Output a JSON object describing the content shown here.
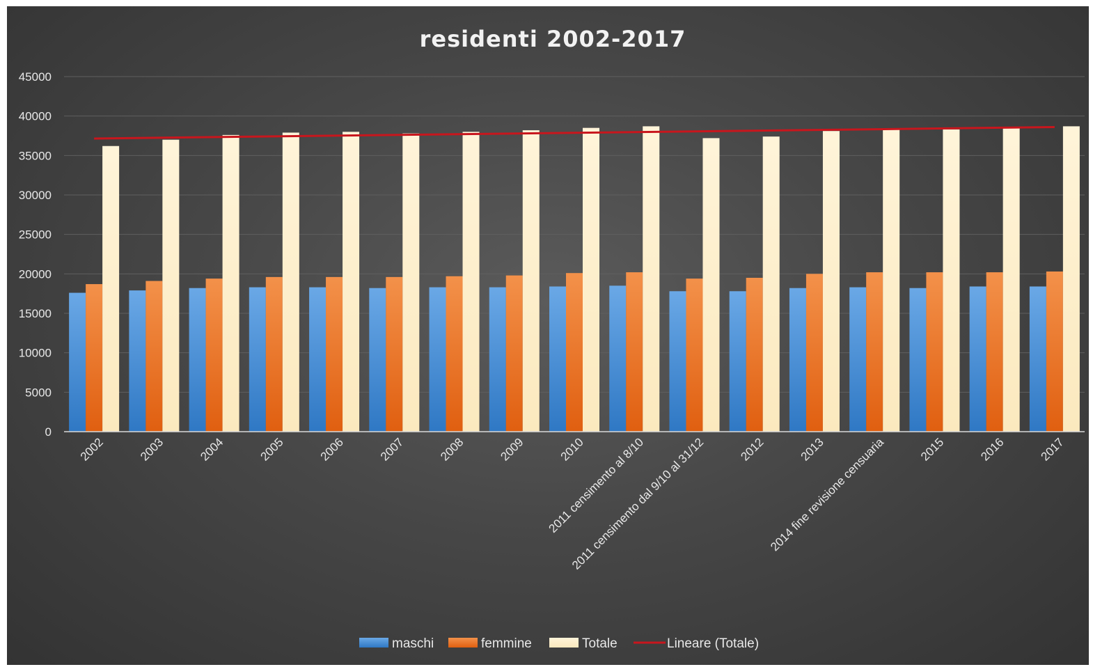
{
  "chart_data": {
    "type": "bar",
    "title": "residenti 2002-2017",
    "xlabel": "",
    "ylabel": "",
    "ylim": [
      0,
      45000
    ],
    "y_ticks": [
      0,
      5000,
      10000,
      15000,
      20000,
      25000,
      30000,
      35000,
      40000,
      45000
    ],
    "grid": true,
    "legend_position": "bottom",
    "categories": [
      "2002",
      "2003",
      "2004",
      "2005",
      "2006",
      "2007",
      "2008",
      "2009",
      "2010",
      "2011 censimento al 8/10",
      "2011 censimento dal 9/10 al 31/12",
      "2012",
      "2013",
      "2014 fine revisione censuaria",
      "2015",
      "2016",
      "2017"
    ],
    "series": [
      {
        "name": "maschi",
        "color": "#4a8fd6",
        "values": [
          17600,
          17900,
          18200,
          18300,
          18300,
          18200,
          18300,
          18300,
          18400,
          18500,
          17800,
          17800,
          18200,
          18300,
          18200,
          18400,
          18400
        ]
      },
      {
        "name": "femmine",
        "color": "#ee7b2e",
        "values": [
          18700,
          19100,
          19400,
          19600,
          19600,
          19600,
          19700,
          19800,
          20100,
          20200,
          19400,
          19500,
          20000,
          20200,
          20200,
          20200,
          20300
        ]
      },
      {
        "name": "Totale",
        "color": "#fdefcc",
        "values": [
          36200,
          37000,
          37600,
          37900,
          38000,
          37800,
          38000,
          38200,
          38500,
          38700,
          37200,
          37400,
          38100,
          38300,
          38300,
          38500,
          38700
        ]
      }
    ],
    "trendline": {
      "name": "Lineare (Totale)",
      "color": "#c8161d",
      "start": 37150,
      "end": 38600
    }
  }
}
